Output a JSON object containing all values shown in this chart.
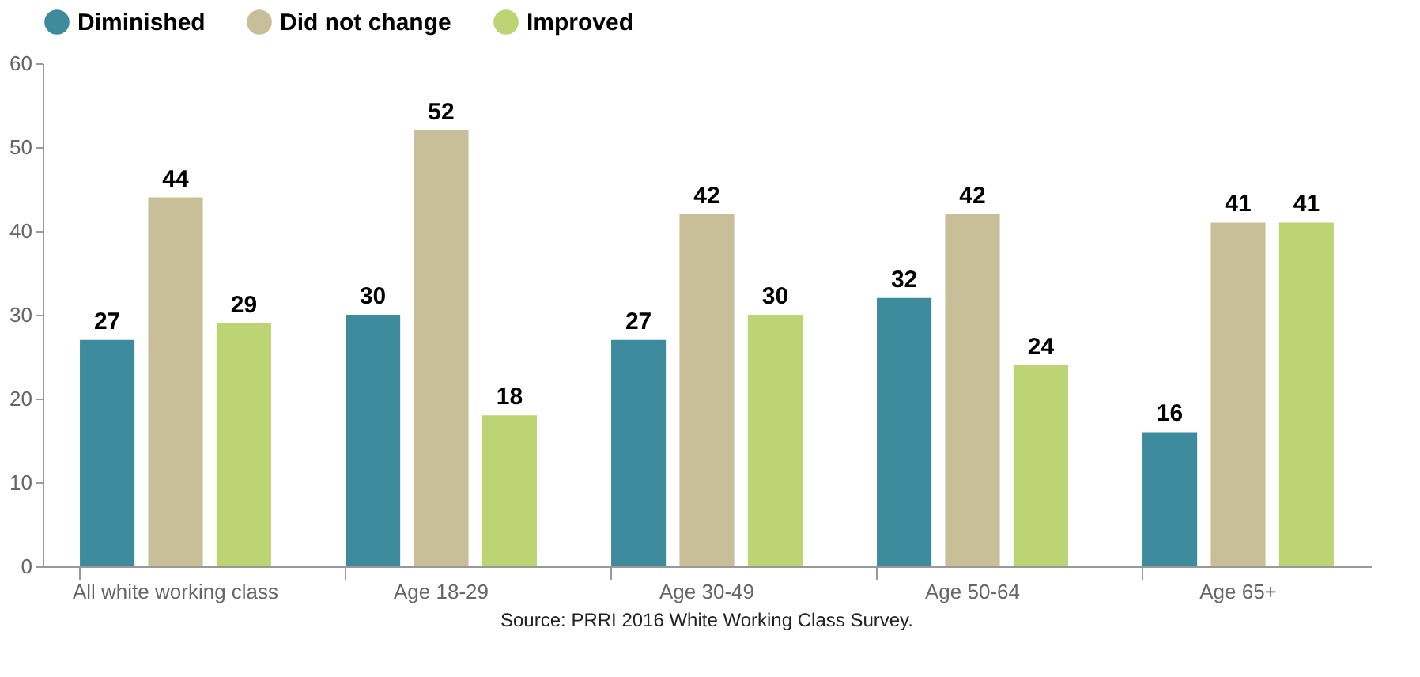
{
  "chart_data": {
    "type": "bar",
    "categories": [
      "All white working class",
      "Age 18-29",
      "Age 30-49",
      "Age 50-64",
      "Age 65+"
    ],
    "series": [
      {
        "name": "Diminished",
        "color": "#3d8b9d",
        "values": [
          27,
          30,
          27,
          32,
          16
        ]
      },
      {
        "name": "Did not change",
        "color": "#c8bf99",
        "values": [
          44,
          52,
          42,
          42,
          41
        ]
      },
      {
        "name": "Improved",
        "color": "#bdd474",
        "values": [
          29,
          18,
          30,
          24,
          41
        ]
      }
    ],
    "ylim": [
      0,
      60
    ],
    "yticks": [
      0,
      10,
      20,
      30,
      40,
      50,
      60
    ],
    "grid": false,
    "legend": "top",
    "data_labels": true,
    "annotations": [
      "Source: PRRI 2016 White Working Class Survey."
    ]
  }
}
